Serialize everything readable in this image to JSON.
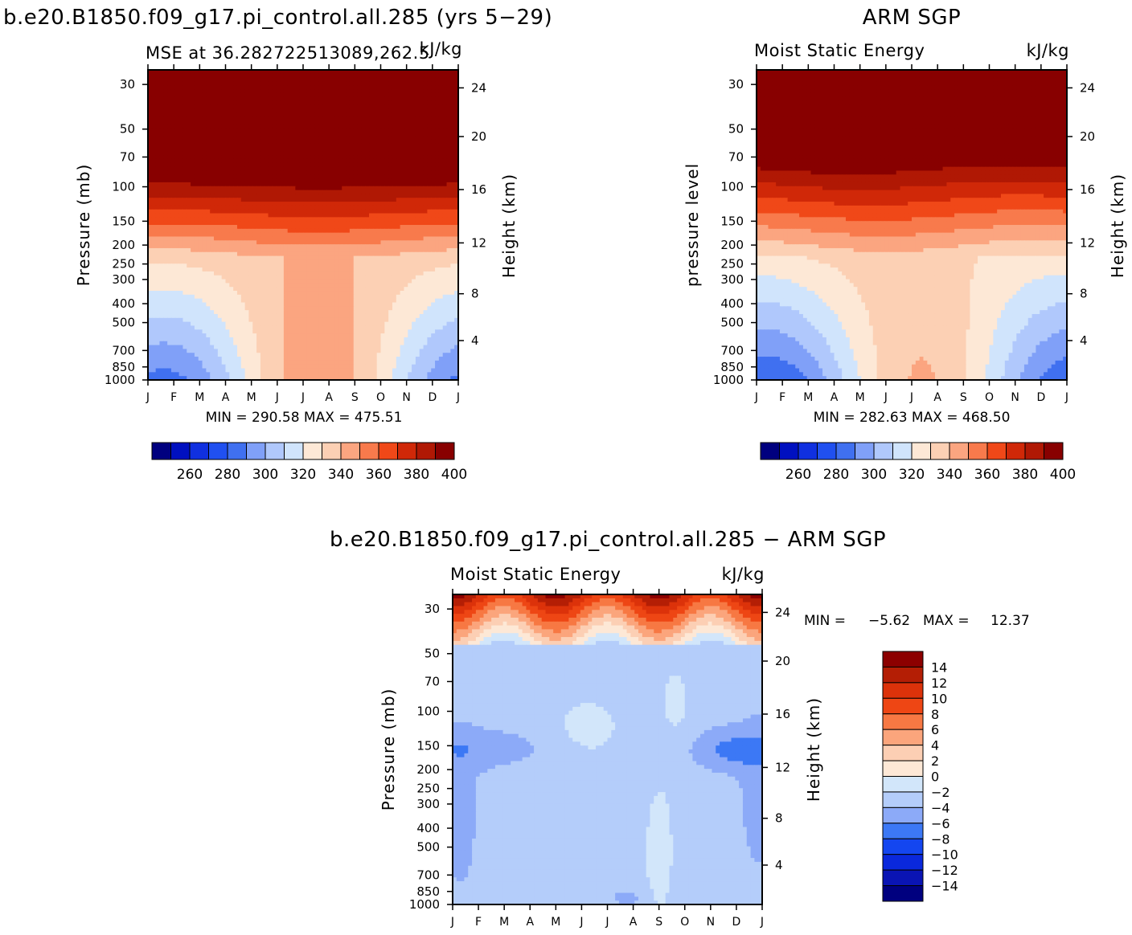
{
  "page": {
    "title_left": "b.e20.B1850.f09_g17.pi_control.all.285 (yrs 5−29)",
    "title_right": "ARM  SGP",
    "title_diff": "b.e20.B1850.f09_g17.pi_control.all.285  −  ARM  SGP"
  },
  "colors": {
    "abs_palette": [
      "#00007f",
      "#0010c0",
      "#1030e0",
      "#2050f0",
      "#4070f0",
      "#80a0f8",
      "#b0c8fc",
      "#d0e4fc",
      "#fde8d6",
      "#fcd0b4",
      "#fba580",
      "#f87a4c",
      "#f04818",
      "#d02808",
      "#b01804",
      "#880000"
    ],
    "diff_palette": [
      "#00007f",
      "#0a14b4",
      "#0a28dc",
      "#1446f0",
      "#3c78f5",
      "#8caaf8",
      "#b4cdfa",
      "#d2e6fa",
      "#fde8d6",
      "#fccfb4",
      "#fba57c",
      "#f77843",
      "#ee4614",
      "#dc320a",
      "#b41e05",
      "#8c0000"
    ]
  },
  "chart_data": [
    {
      "id": "model",
      "type": "heatmap",
      "title": "MSE at 36.282722513089,262.5",
      "units": "kJ/kg",
      "ylabel": "Pressure (mb)",
      "ylabel_right": "Height (km)",
      "x": [
        "J",
        "F",
        "M",
        "A",
        "M",
        "J",
        "J",
        "A",
        "S",
        "O",
        "N",
        "D",
        "J"
      ],
      "pressure_ticks": [
        "30",
        "50",
        "70",
        "100",
        "150",
        "200",
        "250",
        "300",
        "400",
        "500",
        "700",
        "850",
        "1000"
      ],
      "height_ticks": [
        "24",
        "20",
        "16",
        "12",
        "8",
        "4"
      ],
      "stats": "MIN =  290.58  MAX  =  475.51",
      "colorbar_labels": [
        "260",
        "280",
        "300",
        "320",
        "340",
        "360",
        "380",
        "400"
      ],
      "contour_levels": [
        250,
        260,
        270,
        280,
        290,
        300,
        310,
        320,
        330,
        340,
        350,
        360,
        370,
        380,
        390,
        400
      ],
      "min": 290.58,
      "max": 475.51
    },
    {
      "id": "obs",
      "type": "heatmap",
      "title": "Moist Static Energy",
      "units": "kJ/kg",
      "ylabel": "pressure level",
      "ylabel_right": "Height (km)",
      "x": [
        "J",
        "F",
        "M",
        "A",
        "M",
        "J",
        "J",
        "A",
        "S",
        "O",
        "N",
        "D",
        "J"
      ],
      "pressure_ticks": [
        "30",
        "50",
        "70",
        "100",
        "150",
        "200",
        "250",
        "300",
        "400",
        "500",
        "700",
        "850",
        "1000"
      ],
      "height_ticks": [
        "24",
        "20",
        "16",
        "12",
        "8",
        "4"
      ],
      "stats": "MIN =  282.63  MAX  =  468.50",
      "colorbar_labels": [
        "260",
        "280",
        "300",
        "320",
        "340",
        "360",
        "380",
        "400"
      ],
      "contour_levels": [
        250,
        260,
        270,
        280,
        290,
        300,
        310,
        320,
        330,
        340,
        350,
        360,
        370,
        380,
        390,
        400
      ],
      "min": 282.63,
      "max": 468.5
    },
    {
      "id": "diff",
      "type": "heatmap",
      "title": "Moist Static Energy",
      "units": "kJ/kg",
      "ylabel": "Pressure (mb)",
      "ylabel_right": "Height (km)",
      "x": [
        "J",
        "F",
        "M",
        "A",
        "M",
        "J",
        "J",
        "A",
        "S",
        "O",
        "N",
        "D",
        "J"
      ],
      "pressure_ticks": [
        "30",
        "50",
        "70",
        "100",
        "150",
        "200",
        "250",
        "300",
        "400",
        "500",
        "700",
        "850",
        "1000"
      ],
      "height_ticks": [
        "24",
        "20",
        "16",
        "12",
        "8",
        "4"
      ],
      "stats_min_label": "MIN =",
      "stats_min": "−5.62",
      "stats_max_label": "MAX =",
      "stats_max": "12.37",
      "colorbar_labels": [
        "14",
        "12",
        "10",
        "8",
        "6",
        "4",
        "2",
        "0",
        "−2",
        "−4",
        "−6",
        "−8",
        "−10",
        "−12",
        "−14"
      ],
      "contour_levels": [
        -14,
        -12,
        -10,
        -8,
        -6,
        -4,
        -2,
        0,
        2,
        4,
        6,
        8,
        10,
        12,
        14
      ],
      "min": -5.62,
      "max": 12.37
    }
  ]
}
